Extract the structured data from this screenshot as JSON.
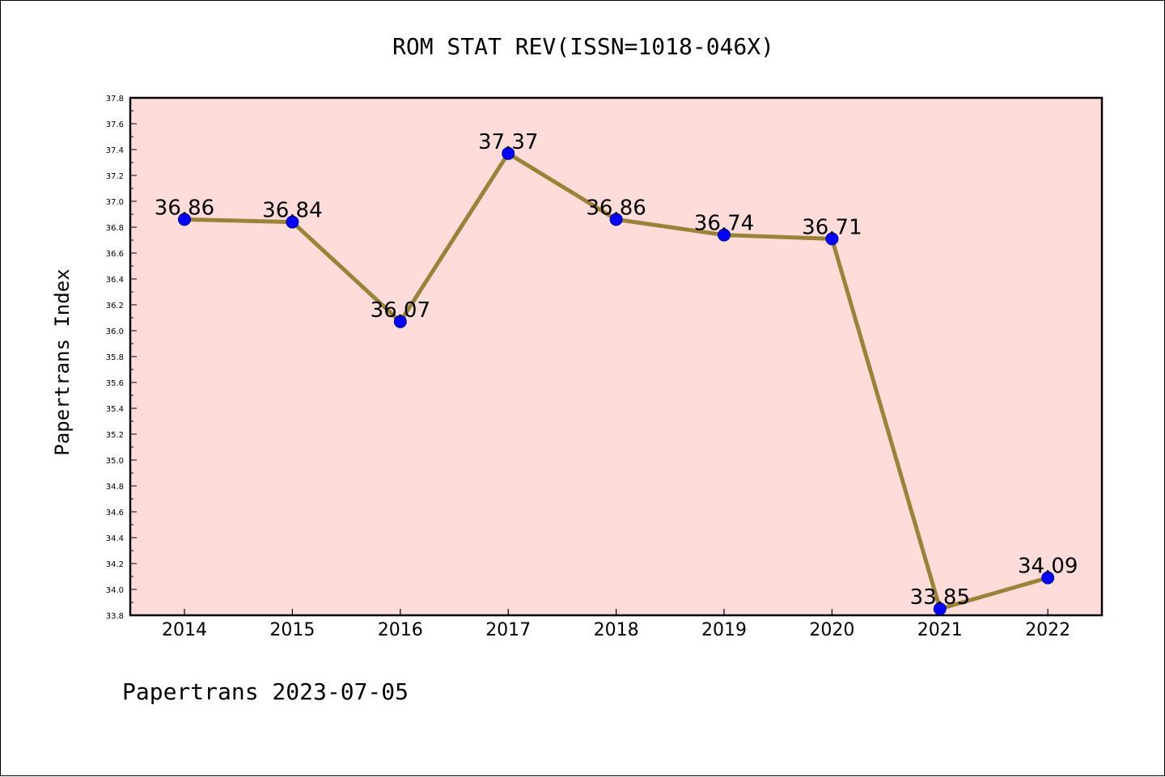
{
  "chart_data": {
    "type": "line",
    "title": "ROM STAT REV(ISSN=1018-046X)",
    "ylabel": "Papertrans Index",
    "xlabel": "",
    "footer": "Papertrans 2023-07-05",
    "categories": [
      "2014",
      "2015",
      "2016",
      "2017",
      "2018",
      "2019",
      "2020",
      "2021",
      "2022"
    ],
    "series": [
      {
        "values": [
          36.86,
          36.84,
          36.07,
          37.37,
          36.86,
          36.74,
          36.71,
          33.85,
          34.09
        ]
      }
    ],
    "data_labels": [
      "36.86",
      "36.84",
      "36.07",
      "37.37",
      "36.86",
      "36.74",
      "36.71",
      "33.85",
      "34.09"
    ],
    "ylim": [
      33.8,
      37.8
    ],
    "ytick_step": 0.2,
    "ytick_labels": [
      "33.8",
      "34.0",
      "34.2",
      "34.4",
      "34.6",
      "34.8",
      "35.0",
      "35.2",
      "35.4",
      "35.6",
      "35.8",
      "36.0",
      "36.2",
      "36.4",
      "36.6",
      "36.8",
      "37.0",
      "37.2",
      "37.4",
      "37.6",
      "37.8"
    ],
    "grid": false,
    "legend": "none",
    "colors": {
      "plot_background": "#FDDCDA",
      "line": "#9A8238",
      "marker": "#0000FF",
      "marker_edge": "#00008B",
      "axis": "#000000"
    }
  }
}
